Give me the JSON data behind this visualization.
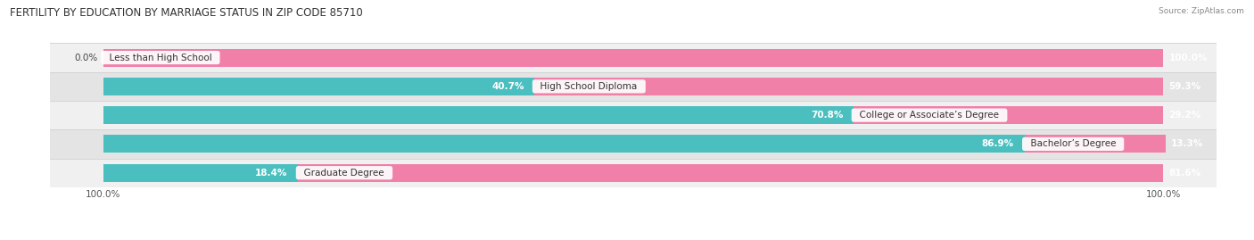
{
  "title": "FERTILITY BY EDUCATION BY MARRIAGE STATUS IN ZIP CODE 85710",
  "source": "Source: ZipAtlas.com",
  "categories": [
    "Less than High School",
    "High School Diploma",
    "College or Associate’s Degree",
    "Bachelor’s Degree",
    "Graduate Degree"
  ],
  "married_pct": [
    0.0,
    40.7,
    70.8,
    86.9,
    18.4
  ],
  "unmarried_pct": [
    100.0,
    59.3,
    29.2,
    13.3,
    81.6
  ],
  "married_color": "#4bbfc0",
  "unmarried_color": "#f080a8",
  "row_bg_odd": "#f0f0f0",
  "row_bg_even": "#e4e4e4",
  "title_fontsize": 8.5,
  "label_fontsize": 7.5,
  "value_fontsize": 7.5,
  "axis_label_fontsize": 7.5,
  "legend_fontsize": 8.0,
  "bar_height": 0.62,
  "figsize": [
    14.06,
    2.69
  ],
  "dpi": 100,
  "xlim_left": -5,
  "xlim_right": 105
}
